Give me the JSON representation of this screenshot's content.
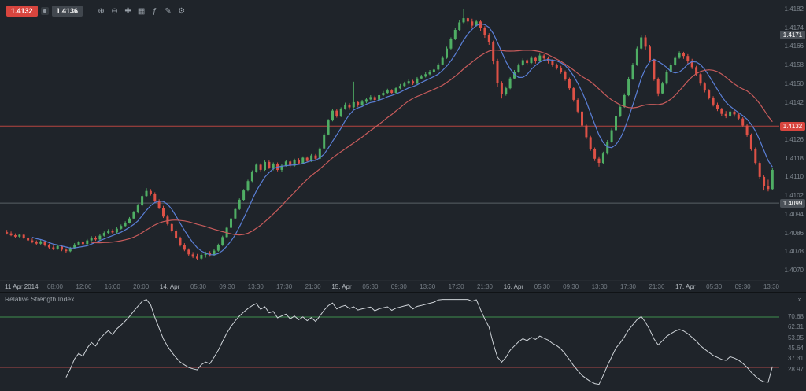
{
  "toolbar": {
    "sell_price": "1.4132",
    "buy_price": "1.4136",
    "buttons": [
      {
        "name": "zoom-in",
        "glyph": "⊕"
      },
      {
        "name": "zoom-out",
        "glyph": "⊖"
      },
      {
        "name": "crosshair",
        "glyph": "✚"
      },
      {
        "name": "chart-type",
        "glyph": "▦"
      },
      {
        "name": "indicators",
        "glyph": "ƒ"
      },
      {
        "name": "drawing-tools",
        "glyph": "✎"
      },
      {
        "name": "settings",
        "glyph": "⚙"
      }
    ]
  },
  "colors": {
    "background": "#1f242a",
    "up": "#4fae64",
    "down": "#dd5146",
    "ma_fast": "#5a7fd6",
    "ma_slow": "#c75b5b",
    "level_line": "#596066",
    "current_line": "#b5443f",
    "axis_text": "#7e868e",
    "badge_dark": "#4a5057",
    "badge_red": "#d8453e",
    "rsi_line": "#ced3d8",
    "rsi_overbought": "#3f8f4f",
    "rsi_oversold": "#a84848"
  },
  "price_axis": {
    "labels": [
      "1.4182",
      "1.4174",
      "1.4166",
      "1.4158",
      "1.4150",
      "1.4142",
      "1.4134",
      "1.4126",
      "1.4118",
      "1.4110",
      "1.4102",
      "1.4094",
      "1.4086",
      "1.4078",
      "1.4070"
    ],
    "high_badge": "1.4171",
    "current_badge": "1.4132",
    "low_badge": "1.4099"
  },
  "time_axis": {
    "labels": [
      {
        "text": "11 Apr 2014",
        "day": true
      },
      {
        "text": "08:00"
      },
      {
        "text": "12:00"
      },
      {
        "text": "16:00"
      },
      {
        "text": "20:00"
      },
      {
        "text": "14. Apr",
        "day": true
      },
      {
        "text": "05:30"
      },
      {
        "text": "09:30"
      },
      {
        "text": "13:30"
      },
      {
        "text": "17:30"
      },
      {
        "text": "21:30"
      },
      {
        "text": "15. Apr",
        "day": true
      },
      {
        "text": "05:30"
      },
      {
        "text": "09:30"
      },
      {
        "text": "13:30"
      },
      {
        "text": "17:30"
      },
      {
        "text": "21:30"
      },
      {
        "text": "16. Apr",
        "day": true
      },
      {
        "text": "05:30"
      },
      {
        "text": "09:30"
      },
      {
        "text": "13:30"
      },
      {
        "text": "17:30"
      },
      {
        "text": "21:30"
      },
      {
        "text": "17. Apr",
        "day": true
      },
      {
        "text": "05:30"
      },
      {
        "text": "09:30"
      },
      {
        "text": "13:30"
      }
    ]
  },
  "rsi": {
    "title": "Relative Strength Index",
    "close_glyph": "×",
    "period": 14,
    "overbought": 70,
    "oversold": 30,
    "range": [
      15,
      85
    ],
    "axis_labels": [
      "70.68",
      "62.31",
      "53.95",
      "45.64",
      "37.31",
      "28.97"
    ]
  },
  "chart_data": {
    "type": "candlestick",
    "title": "",
    "instrument_prices": {
      "sell": 1.4132,
      "buy": 1.4136
    },
    "base": 1.4,
    "pip": 0.0001,
    "price_range": [
      1.4066,
      1.4186
    ],
    "levels": {
      "high": 1.4171,
      "current": 1.4132,
      "low": 1.4099
    },
    "ma_fast_period": 7,
    "ma_slow_period": 21,
    "candles": [
      [
        86.5,
        87.5,
        85.5,
        86.0
      ],
      [
        86.0,
        86.8,
        84.8,
        85.2
      ],
      [
        85.2,
        86.0,
        84.2,
        84.6
      ],
      [
        84.6,
        85.8,
        84.0,
        85.4
      ],
      [
        85.4,
        85.9,
        83.6,
        84.0
      ],
      [
        84.0,
        84.6,
        82.6,
        83.0
      ],
      [
        83.0,
        83.8,
        81.8,
        82.2
      ],
      [
        82.2,
        83.0,
        81.0,
        81.6
      ],
      [
        81.6,
        83.2,
        81.2,
        82.6
      ],
      [
        82.6,
        83.0,
        80.4,
        81.0
      ],
      [
        81.0,
        81.6,
        79.4,
        80.0
      ],
      [
        80.0,
        80.8,
        78.8,
        79.4
      ],
      [
        79.4,
        81.0,
        79.0,
        80.6
      ],
      [
        80.6,
        81.0,
        78.4,
        79.0
      ],
      [
        79.0,
        79.6,
        77.6,
        78.4
      ],
      [
        78.4,
        80.2,
        78.0,
        79.6
      ],
      [
        79.6,
        81.8,
        79.2,
        81.2
      ],
      [
        81.2,
        82.8,
        80.8,
        82.2
      ],
      [
        82.2,
        82.8,
        80.6,
        81.4
      ],
      [
        81.4,
        83.6,
        81.0,
        83.0
      ],
      [
        83.0,
        84.8,
        82.6,
        84.2
      ],
      [
        84.2,
        84.8,
        82.8,
        83.4
      ],
      [
        83.4,
        85.6,
        83.0,
        85.0
      ],
      [
        85.0,
        86.8,
        84.6,
        86.2
      ],
      [
        86.2,
        87.8,
        85.8,
        87.2
      ],
      [
        87.2,
        87.8,
        85.8,
        86.4
      ],
      [
        86.4,
        88.6,
        86.0,
        88.0
      ],
      [
        88.0,
        89.8,
        87.6,
        89.2
      ],
      [
        89.2,
        91.2,
        88.8,
        90.6
      ],
      [
        90.6,
        93.0,
        90.2,
        92.4
      ],
      [
        92.4,
        95.6,
        92.0,
        95.0
      ],
      [
        95.0,
        98.6,
        94.6,
        98.0
      ],
      [
        98.0,
        102.6,
        97.6,
        102.0
      ],
      [
        102.0,
        105.4,
        101.6,
        104.2
      ],
      [
        104.2,
        105.0,
        102.2,
        103.0
      ],
      [
        103.0,
        103.6,
        99.4,
        100.0
      ],
      [
        100.0,
        100.6,
        96.4,
        97.0
      ],
      [
        97.0,
        97.8,
        92.6,
        93.2
      ],
      [
        93.2,
        94.0,
        89.4,
        90.0
      ],
      [
        90.0,
        90.6,
        86.4,
        87.0
      ],
      [
        87.0,
        87.8,
        83.4,
        84.0
      ],
      [
        84.0,
        84.6,
        80.4,
        81.0
      ],
      [
        81.0,
        81.8,
        78.4,
        79.0
      ],
      [
        79.0,
        79.6,
        76.4,
        77.0
      ],
      [
        77.0,
        78.0,
        75.4,
        76.0
      ],
      [
        76.0,
        77.2,
        74.6,
        75.2
      ],
      [
        75.2,
        77.4,
        74.8,
        76.8
      ],
      [
        76.8,
        78.2,
        75.6,
        77.6
      ],
      [
        77.6,
        78.4,
        76.0,
        76.6
      ],
      [
        76.6,
        79.2,
        76.2,
        78.6
      ],
      [
        78.6,
        81.6,
        78.2,
        81.0
      ],
      [
        81.0,
        85.0,
        80.6,
        84.4
      ],
      [
        84.4,
        89.0,
        84.0,
        88.4
      ],
      [
        88.4,
        93.0,
        88.0,
        92.4
      ],
      [
        92.4,
        97.0,
        92.0,
        96.4
      ],
      [
        96.4,
        101.0,
        96.0,
        100.4
      ],
      [
        100.4,
        105.0,
        100.0,
        104.4
      ],
      [
        104.4,
        109.0,
        104.0,
        108.4
      ],
      [
        108.4,
        113.0,
        108.0,
        112.4
      ],
      [
        112.4,
        116.0,
        112.0,
        115.4
      ],
      [
        115.4,
        116.0,
        112.6,
        113.2
      ],
      [
        113.2,
        117.2,
        112.8,
        116.6
      ],
      [
        116.6,
        117.2,
        113.6,
        114.2
      ],
      [
        114.2,
        116.4,
        113.0,
        115.8
      ],
      [
        115.8,
        116.4,
        112.6,
        113.2
      ],
      [
        113.2,
        115.6,
        112.2,
        115.0
      ],
      [
        115.0,
        117.4,
        114.6,
        116.8
      ],
      [
        116.8,
        117.4,
        114.4,
        115.0
      ],
      [
        115.0,
        118.0,
        114.6,
        117.4
      ],
      [
        117.4,
        118.2,
        115.4,
        116.0
      ],
      [
        116.0,
        119.0,
        115.6,
        118.4
      ],
      [
        118.4,
        119.0,
        116.4,
        117.0
      ],
      [
        117.0,
        120.0,
        116.6,
        119.4
      ],
      [
        119.4,
        120.0,
        117.4,
        118.0
      ],
      [
        118.0,
        123.0,
        117.6,
        122.4
      ],
      [
        122.4,
        129.0,
        122.0,
        128.4
      ],
      [
        128.4,
        135.0,
        128.0,
        134.4
      ],
      [
        134.4,
        139.4,
        134.0,
        138.6
      ],
      [
        138.6,
        139.2,
        135.6,
        136.2
      ],
      [
        136.2,
        140.0,
        135.8,
        139.4
      ],
      [
        139.4,
        142.0,
        139.0,
        141.2
      ],
      [
        141.2,
        141.8,
        139.0,
        140.0
      ],
      [
        140.0,
        151.0,
        139.6,
        142.2
      ],
      [
        142.2,
        142.8,
        140.2,
        141.0
      ],
      [
        141.0,
        143.2,
        140.6,
        142.4
      ],
      [
        142.4,
        144.2,
        141.8,
        143.4
      ],
      [
        143.4,
        145.2,
        143.0,
        144.4
      ],
      [
        144.4,
        145.0,
        142.6,
        143.2
      ],
      [
        143.2,
        145.8,
        142.8,
        145.2
      ],
      [
        145.2,
        147.0,
        144.8,
        146.2
      ],
      [
        146.2,
        148.0,
        145.8,
        147.2
      ],
      [
        147.2,
        147.8,
        145.6,
        146.2
      ],
      [
        146.2,
        148.8,
        145.8,
        148.2
      ],
      [
        148.2,
        150.0,
        147.8,
        149.2
      ],
      [
        149.2,
        151.0,
        148.8,
        150.2
      ],
      [
        150.2,
        152.0,
        149.8,
        151.2
      ],
      [
        151.2,
        151.8,
        149.6,
        150.2
      ],
      [
        150.2,
        153.0,
        149.8,
        152.4
      ],
      [
        152.4,
        154.0,
        152.0,
        153.2
      ],
      [
        153.2,
        155.0,
        152.8,
        154.2
      ],
      [
        154.2,
        156.0,
        153.8,
        155.2
      ],
      [
        155.2,
        157.0,
        154.8,
        156.2
      ],
      [
        156.2,
        159.0,
        155.8,
        158.4
      ],
      [
        158.4,
        162.0,
        158.0,
        161.2
      ],
      [
        161.2,
        166.0,
        160.8,
        165.2
      ],
      [
        165.2,
        170.0,
        164.8,
        169.2
      ],
      [
        169.2,
        174.0,
        168.8,
        173.2
      ],
      [
        173.2,
        177.4,
        172.8,
        176.4
      ],
      [
        176.4,
        182.0,
        176.0,
        178.2
      ],
      [
        178.2,
        179.0,
        175.4,
        176.8
      ],
      [
        176.8,
        178.0,
        173.8,
        175.0
      ],
      [
        175.0,
        177.6,
        174.6,
        176.8
      ],
      [
        176.8,
        177.4,
        172.8,
        174.0
      ],
      [
        174.0,
        174.8,
        169.8,
        171.0
      ],
      [
        171.0,
        171.8,
        166.8,
        168.0
      ],
      [
        168.0,
        168.6,
        158.6,
        160.0
      ],
      [
        160.0,
        160.8,
        148.8,
        150.4
      ],
      [
        150.4,
        151.2,
        143.8,
        145.6
      ],
      [
        145.6,
        149.0,
        145.0,
        148.2
      ],
      [
        148.2,
        153.0,
        147.8,
        152.4
      ],
      [
        152.4,
        156.0,
        152.0,
        155.2
      ],
      [
        155.2,
        158.8,
        154.8,
        158.0
      ],
      [
        158.0,
        161.0,
        157.6,
        160.2
      ],
      [
        160.2,
        160.8,
        158.0,
        159.0
      ],
      [
        159.0,
        162.0,
        158.6,
        161.2
      ],
      [
        161.2,
        161.8,
        158.8,
        160.0
      ],
      [
        160.0,
        163.0,
        159.6,
        162.2
      ],
      [
        162.2,
        162.8,
        160.2,
        161.0
      ],
      [
        161.0,
        161.8,
        158.8,
        160.0
      ],
      [
        160.0,
        160.6,
        157.4,
        158.2
      ],
      [
        158.2,
        158.8,
        156.2,
        157.0
      ],
      [
        157.0,
        157.8,
        154.4,
        155.2
      ],
      [
        155.2,
        155.8,
        151.4,
        152.2
      ],
      [
        152.2,
        152.8,
        147.4,
        148.2
      ],
      [
        148.2,
        148.8,
        142.4,
        143.2
      ],
      [
        143.2,
        143.8,
        137.4,
        138.2
      ],
      [
        138.2,
        138.8,
        131.4,
        132.2
      ],
      [
        132.2,
        132.8,
        126.4,
        127.2
      ],
      [
        127.2,
        127.8,
        121.4,
        122.2
      ],
      [
        122.2,
        122.8,
        117.0,
        118.0
      ],
      [
        118.0,
        119.0,
        114.6,
        116.2
      ],
      [
        116.2,
        121.0,
        115.8,
        120.2
      ],
      [
        120.2,
        126.0,
        119.8,
        125.2
      ],
      [
        125.2,
        131.0,
        124.8,
        130.2
      ],
      [
        130.2,
        137.0,
        129.8,
        136.2
      ],
      [
        136.2,
        141.0,
        135.8,
        140.2
      ],
      [
        140.2,
        146.0,
        139.8,
        145.2
      ],
      [
        145.2,
        153.0,
        144.8,
        152.2
      ],
      [
        152.2,
        159.0,
        151.8,
        158.2
      ],
      [
        158.2,
        166.0,
        157.8,
        165.2
      ],
      [
        165.2,
        171.0,
        164.8,
        170.0
      ],
      [
        170.0,
        170.8,
        164.8,
        166.0
      ],
      [
        166.0,
        166.8,
        159.4,
        160.2
      ],
      [
        160.2,
        160.8,
        151.4,
        152.2
      ],
      [
        152.2,
        152.8,
        144.8,
        146.0
      ],
      [
        146.0,
        151.0,
        145.6,
        150.2
      ],
      [
        150.2,
        156.0,
        149.8,
        155.2
      ],
      [
        155.2,
        159.0,
        154.8,
        158.2
      ],
      [
        158.2,
        162.0,
        157.8,
        161.2
      ],
      [
        161.2,
        164.0,
        160.8,
        163.2
      ],
      [
        163.2,
        163.8,
        160.8,
        162.0
      ],
      [
        162.0,
        162.8,
        158.8,
        160.0
      ],
      [
        160.0,
        160.8,
        156.4,
        157.2
      ],
      [
        157.2,
        157.8,
        153.4,
        154.2
      ],
      [
        154.2,
        154.8,
        149.4,
        150.2
      ],
      [
        150.2,
        150.8,
        146.4,
        147.2
      ],
      [
        147.2,
        147.8,
        143.4,
        144.2
      ],
      [
        144.2,
        144.8,
        140.4,
        141.2
      ],
      [
        141.2,
        142.0,
        138.4,
        139.2
      ],
      [
        139.2,
        139.8,
        136.4,
        137.2
      ],
      [
        137.2,
        138.4,
        135.4,
        136.2
      ],
      [
        136.2,
        139.0,
        135.8,
        138.2
      ],
      [
        138.2,
        138.8,
        136.0,
        137.0
      ],
      [
        137.0,
        137.8,
        134.4,
        135.2
      ],
      [
        135.2,
        135.8,
        131.4,
        132.2
      ],
      [
        132.2,
        132.8,
        127.4,
        128.2
      ],
      [
        128.2,
        128.8,
        121.4,
        122.2
      ],
      [
        122.2,
        122.8,
        115.4,
        116.2
      ],
      [
        116.2,
        116.8,
        109.4,
        110.2
      ],
      [
        110.2,
        110.8,
        104.4,
        106.2
      ],
      [
        106.2,
        109.0,
        104.0,
        105.0
      ],
      [
        105.0,
        114.0,
        104.6,
        113.2
      ]
    ]
  }
}
